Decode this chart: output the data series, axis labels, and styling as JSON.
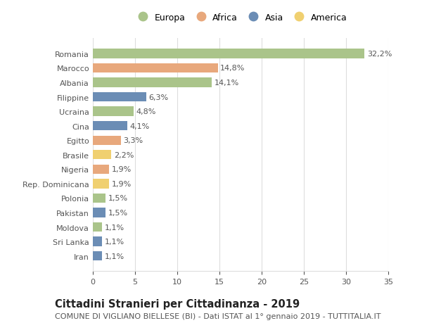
{
  "categories": [
    "Romania",
    "Marocco",
    "Albania",
    "Filippine",
    "Ucraina",
    "Cina",
    "Egitto",
    "Brasile",
    "Nigeria",
    "Rep. Dominicana",
    "Polonia",
    "Pakistan",
    "Moldova",
    "Sri Lanka",
    "Iran"
  ],
  "values": [
    32.2,
    14.8,
    14.1,
    6.3,
    4.8,
    4.1,
    3.3,
    2.2,
    1.9,
    1.9,
    1.5,
    1.5,
    1.1,
    1.1,
    1.1
  ],
  "labels": [
    "32,2%",
    "14,8%",
    "14,1%",
    "6,3%",
    "4,8%",
    "4,1%",
    "3,3%",
    "2,2%",
    "1,9%",
    "1,9%",
    "1,5%",
    "1,5%",
    "1,1%",
    "1,1%",
    "1,1%"
  ],
  "continents": [
    "Europa",
    "Africa",
    "Europa",
    "Asia",
    "Europa",
    "Asia",
    "Africa",
    "America",
    "Africa",
    "America",
    "Europa",
    "Asia",
    "Europa",
    "Asia",
    "Asia"
  ],
  "continent_colors": {
    "Europa": "#aac48a",
    "Africa": "#e8a87c",
    "Asia": "#6b8db5",
    "America": "#f0d070"
  },
  "legend_order": [
    "Europa",
    "Africa",
    "Asia",
    "America"
  ],
  "title": "Cittadini Stranieri per Cittadinanza - 2019",
  "subtitle": "COMUNE DI VIGLIANO BIELLESE (BI) - Dati ISTAT al 1° gennaio 2019 - TUTTITALIA.IT",
  "xlim": [
    0,
    35
  ],
  "xticks": [
    0,
    5,
    10,
    15,
    20,
    25,
    30,
    35
  ],
  "background_color": "#ffffff",
  "grid_color": "#dddddd",
  "title_fontsize": 10.5,
  "subtitle_fontsize": 8,
  "label_fontsize": 8,
  "tick_fontsize": 8,
  "legend_fontsize": 9
}
